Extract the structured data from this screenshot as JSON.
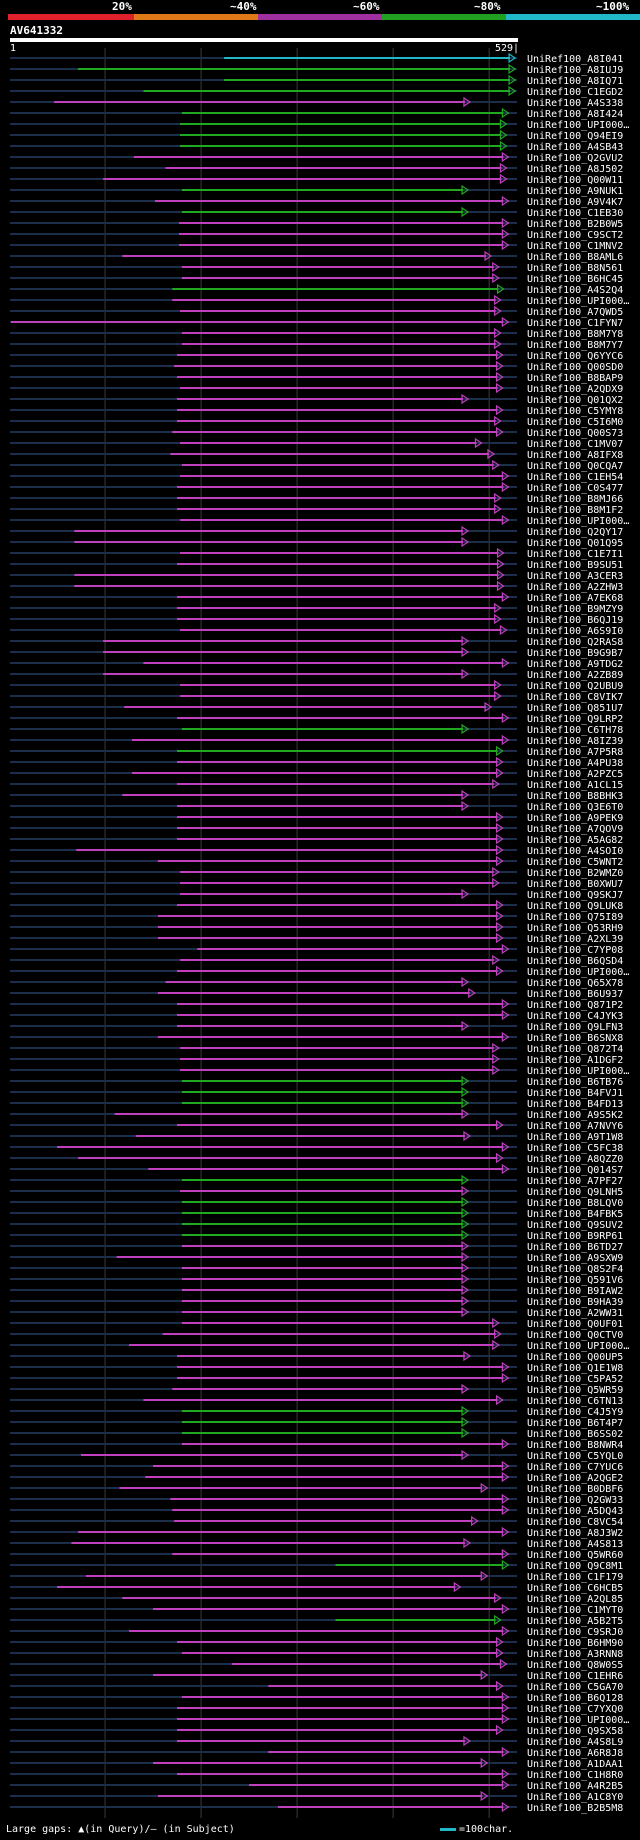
{
  "query": {
    "id": "AV641332",
    "length": 529,
    "start_label": "1",
    "end_label": "529|"
  },
  "scale": {
    "labels": [
      "20%",
      "~40%",
      "~60%",
      "~80%",
      "~100%"
    ],
    "colors": [
      "#e0202a",
      "#e07a18",
      "#a030a0",
      "#20a020",
      "#20b8c8"
    ]
  },
  "legend": {
    "gaps_text": "Large gaps: ▲(in Query)/— (in Subject)",
    "scale_text": "=100char."
  },
  "colors": {
    "cyan": "#22b8c8",
    "green": "#21a821",
    "magenta": "#c040c0"
  },
  "hits": [
    {
      "id": "UniRef100_A8I041",
      "start": 224,
      "end": 527,
      "color": "cyan"
    },
    {
      "id": "UniRef100_A8IUJ9",
      "start": 72,
      "end": 527,
      "color": "green"
    },
    {
      "id": "UniRef100_A8IQ71",
      "start": 224,
      "end": 527,
      "color": "green"
    },
    {
      "id": "UniRef100_C1EGD2",
      "start": 140,
      "end": 527,
      "color": "green"
    },
    {
      "id": "UniRef100_A4S338",
      "start": 47,
      "end": 480,
      "color": "magenta"
    },
    {
      "id": "UniRef100_A8I424",
      "start": 180,
      "end": 520,
      "color": "green"
    },
    {
      "id": "UniRef100_UPI000…",
      "start": 178,
      "end": 518,
      "color": "green"
    },
    {
      "id": "UniRef100_Q94EI9",
      "start": 178,
      "end": 518,
      "color": "green"
    },
    {
      "id": "UniRef100_A4SB43",
      "start": 178,
      "end": 518,
      "color": "green"
    },
    {
      "id": "UniRef100_Q2GVU2",
      "start": 130,
      "end": 520,
      "color": "magenta"
    },
    {
      "id": "UniRef100_A8J502",
      "start": 163,
      "end": 518,
      "color": "magenta"
    },
    {
      "id": "UniRef100_Q00W11",
      "start": 98,
      "end": 518,
      "color": "magenta"
    },
    {
      "id": "UniRef100_A9NUK1",
      "start": 180,
      "end": 478,
      "color": "green"
    },
    {
      "id": "UniRef100_A9V4K7",
      "start": 152,
      "end": 520,
      "color": "magenta"
    },
    {
      "id": "UniRef100_C1EB30",
      "start": 180,
      "end": 478,
      "color": "green"
    },
    {
      "id": "UniRef100_B2B0W5",
      "start": 177,
      "end": 520,
      "color": "magenta"
    },
    {
      "id": "UniRef100_C9SCT2",
      "start": 177,
      "end": 520,
      "color": "magenta"
    },
    {
      "id": "UniRef100_C1MNV2",
      "start": 177,
      "end": 520,
      "color": "magenta"
    },
    {
      "id": "UniRef100_B8AML6",
      "start": 118,
      "end": 502,
      "color": "magenta"
    },
    {
      "id": "UniRef100_B8N561",
      "start": 180,
      "end": 510,
      "color": "magenta"
    },
    {
      "id": "UniRef100_B6HC45",
      "start": 180,
      "end": 510,
      "color": "magenta"
    },
    {
      "id": "UniRef100_A4S2Q4",
      "start": 170,
      "end": 515,
      "color": "green"
    },
    {
      "id": "UniRef100_UPI000…",
      "start": 170,
      "end": 512,
      "color": "magenta"
    },
    {
      "id": "UniRef100_A7QWD5",
      "start": 178,
      "end": 512,
      "color": "magenta"
    },
    {
      "id": "UniRef100_C1FYN7",
      "start": 2,
      "end": 520,
      "color": "magenta"
    },
    {
      "id": "UniRef100_B8M7Y8",
      "start": 180,
      "end": 512,
      "color": "magenta"
    },
    {
      "id": "UniRef100_B8M7Y7",
      "start": 180,
      "end": 512,
      "color": "magenta"
    },
    {
      "id": "UniRef100_Q6YYC6",
      "start": 175,
      "end": 514,
      "color": "magenta"
    },
    {
      "id": "UniRef100_Q00SD0",
      "start": 172,
      "end": 514,
      "color": "magenta"
    },
    {
      "id": "UniRef100_B8BAP9",
      "start": 175,
      "end": 514,
      "color": "magenta"
    },
    {
      "id": "UniRef100_A2QDX9",
      "start": 178,
      "end": 514,
      "color": "magenta"
    },
    {
      "id": "UniRef100_Q01QX2",
      "start": 175,
      "end": 478,
      "color": "magenta"
    },
    {
      "id": "UniRef100_C5YMY8",
      "start": 175,
      "end": 514,
      "color": "magenta"
    },
    {
      "id": "UniRef100_C5I6M0",
      "start": 175,
      "end": 512,
      "color": "magenta"
    },
    {
      "id": "UniRef100_Q00S73",
      "start": 170,
      "end": 514,
      "color": "magenta"
    },
    {
      "id": "UniRef100_C1MV07",
      "start": 178,
      "end": 492,
      "color": "magenta"
    },
    {
      "id": "UniRef100_A8IFX8",
      "start": 168,
      "end": 505,
      "color": "magenta"
    },
    {
      "id": "UniRef100_Q0CQA7",
      "start": 180,
      "end": 510,
      "color": "magenta"
    },
    {
      "id": "UniRef100_C1EH54",
      "start": 178,
      "end": 520,
      "color": "magenta"
    },
    {
      "id": "UniRef100_C0S477",
      "start": 175,
      "end": 520,
      "color": "magenta"
    },
    {
      "id": "UniRef100_B8MJ66",
      "start": 175,
      "end": 512,
      "color": "magenta"
    },
    {
      "id": "UniRef100_B8M1F2",
      "start": 175,
      "end": 512,
      "color": "magenta"
    },
    {
      "id": "UniRef100_UPI000…",
      "start": 178,
      "end": 520,
      "color": "magenta"
    },
    {
      "id": "UniRef100_Q2QY17",
      "start": 68,
      "end": 478,
      "color": "magenta"
    },
    {
      "id": "UniRef100_Q01Q95",
      "start": 68,
      "end": 478,
      "color": "magenta"
    },
    {
      "id": "UniRef100_C1E7I1",
      "start": 178,
      "end": 515,
      "color": "magenta"
    },
    {
      "id": "UniRef100_B9SU51",
      "start": 175,
      "end": 515,
      "color": "magenta"
    },
    {
      "id": "UniRef100_A3CER3",
      "start": 68,
      "end": 515,
      "color": "magenta"
    },
    {
      "id": "UniRef100_A2ZHW3",
      "start": 68,
      "end": 515,
      "color": "magenta"
    },
    {
      "id": "UniRef100_A7EK68",
      "start": 175,
      "end": 520,
      "color": "magenta"
    },
    {
      "id": "UniRef100_B9MZY9",
      "start": 175,
      "end": 512,
      "color": "magenta"
    },
    {
      "id": "UniRef100_B6QJ19",
      "start": 175,
      "end": 512,
      "color": "magenta"
    },
    {
      "id": "UniRef100_A6S9I0",
      "start": 178,
      "end": 518,
      "color": "magenta"
    },
    {
      "id": "UniRef100_Q2RAS8",
      "start": 98,
      "end": 478,
      "color": "magenta"
    },
    {
      "id": "UniRef100_B9G9B7",
      "start": 98,
      "end": 478,
      "color": "magenta"
    },
    {
      "id": "UniRef100_A9TDG2",
      "start": 140,
      "end": 520,
      "color": "magenta"
    },
    {
      "id": "UniRef100_A2ZB89",
      "start": 98,
      "end": 478,
      "color": "magenta"
    },
    {
      "id": "UniRef100_Q2UBU9",
      "start": 178,
      "end": 512,
      "color": "magenta"
    },
    {
      "id": "UniRef100_C8VIK7",
      "start": 178,
      "end": 512,
      "color": "magenta"
    },
    {
      "id": "UniRef100_Q851U7",
      "start": 120,
      "end": 502,
      "color": "magenta"
    },
    {
      "id": "UniRef100_Q9LRP2",
      "start": 175,
      "end": 520,
      "color": "magenta"
    },
    {
      "id": "UniRef100_C6TH78",
      "start": 180,
      "end": 478,
      "color": "green"
    },
    {
      "id": "UniRef100_A8IZ39",
      "start": 128,
      "end": 520,
      "color": "magenta"
    },
    {
      "id": "UniRef100_A7P5R8",
      "start": 175,
      "end": 514,
      "color": "green"
    },
    {
      "id": "UniRef100_A4PU38",
      "start": 175,
      "end": 514,
      "color": "magenta"
    },
    {
      "id": "UniRef100_A2PZC5",
      "start": 128,
      "end": 514,
      "color": "magenta"
    },
    {
      "id": "UniRef100_A1CL15",
      "start": 175,
      "end": 510,
      "color": "magenta"
    },
    {
      "id": "UniRef100_B8BHK3",
      "start": 118,
      "end": 478,
      "color": "magenta"
    },
    {
      "id": "UniRef100_Q3E6T0",
      "start": 175,
      "end": 478,
      "color": "magenta"
    },
    {
      "id": "UniRef100_A9PEK9",
      "start": 175,
      "end": 514,
      "color": "magenta"
    },
    {
      "id": "UniRef100_A7QOV9",
      "start": 175,
      "end": 514,
      "color": "magenta"
    },
    {
      "id": "UniRef100_A5AG82",
      "start": 175,
      "end": 514,
      "color": "magenta"
    },
    {
      "id": "UniRef100_A4SOI0",
      "start": 70,
      "end": 514,
      "color": "magenta"
    },
    {
      "id": "UniRef100_C5WNT2",
      "start": 155,
      "end": 514,
      "color": "magenta"
    },
    {
      "id": "UniRef100_B2WMZ0",
      "start": 178,
      "end": 510,
      "color": "magenta"
    },
    {
      "id": "UniRef100_B0XWU7",
      "start": 178,
      "end": 510,
      "color": "magenta"
    },
    {
      "id": "UniRef100_Q9SKJ7",
      "start": 178,
      "end": 478,
      "color": "magenta"
    },
    {
      "id": "UniRef100_Q9LUK8",
      "start": 175,
      "end": 514,
      "color": "magenta"
    },
    {
      "id": "UniRef100_Q75I89",
      "start": 155,
      "end": 514,
      "color": "magenta"
    },
    {
      "id": "UniRef100_Q53RH9",
      "start": 155,
      "end": 514,
      "color": "magenta"
    },
    {
      "id": "UniRef100_A2XL39",
      "start": 155,
      "end": 514,
      "color": "magenta"
    },
    {
      "id": "UniRef100_C7YP08",
      "start": 196,
      "end": 520,
      "color": "magenta"
    },
    {
      "id": "UniRef100_B6QSD4",
      "start": 178,
      "end": 510,
      "color": "magenta"
    },
    {
      "id": "UniRef100_UPI000…",
      "start": 175,
      "end": 514,
      "color": "magenta"
    },
    {
      "id": "UniRef100_Q65X78",
      "start": 163,
      "end": 478,
      "color": "magenta"
    },
    {
      "id": "UniRef100_B6U937",
      "start": 155,
      "end": 485,
      "color": "magenta"
    },
    {
      "id": "UniRef100_Q871P2",
      "start": 175,
      "end": 520,
      "color": "magenta"
    },
    {
      "id": "UniRef100_C4JYK3",
      "start": 175,
      "end": 520,
      "color": "magenta"
    },
    {
      "id": "UniRef100_Q9LFN3",
      "start": 175,
      "end": 478,
      "color": "magenta"
    },
    {
      "id": "UniRef100_B6SNX8",
      "start": 155,
      "end": 520,
      "color": "magenta"
    },
    {
      "id": "UniRef100_Q872T4",
      "start": 178,
      "end": 510,
      "color": "magenta"
    },
    {
      "id": "UniRef100_A1DGF2",
      "start": 178,
      "end": 510,
      "color": "magenta"
    },
    {
      "id": "UniRef100_UPI000…",
      "start": 178,
      "end": 510,
      "color": "magenta"
    },
    {
      "id": "UniRef100_B6TB76",
      "start": 180,
      "end": 478,
      "color": "green"
    },
    {
      "id": "UniRef100_B4FVJ1",
      "start": 180,
      "end": 478,
      "color": "green"
    },
    {
      "id": "UniRef100_B4FD13",
      "start": 180,
      "end": 478,
      "color": "green"
    },
    {
      "id": "UniRef100_A9S5K2",
      "start": 110,
      "end": 478,
      "color": "magenta"
    },
    {
      "id": "UniRef100_A7NVY6",
      "start": 175,
      "end": 514,
      "color": "magenta"
    },
    {
      "id": "UniRef100_A9T1W8",
      "start": 132,
      "end": 480,
      "color": "magenta"
    },
    {
      "id": "UniRef100_C5FC38",
      "start": 50,
      "end": 520,
      "color": "magenta"
    },
    {
      "id": "UniRef100_A8QZZ0",
      "start": 72,
      "end": 514,
      "color": "magenta"
    },
    {
      "id": "UniRef100_Q014S7",
      "start": 145,
      "end": 520,
      "color": "magenta"
    },
    {
      "id": "UniRef100_A7PF27",
      "start": 180,
      "end": 478,
      "color": "green"
    },
    {
      "id": "UniRef100_Q9LNH5",
      "start": 178,
      "end": 478,
      "color": "magenta"
    },
    {
      "id": "UniRef100_B8LQV0",
      "start": 180,
      "end": 478,
      "color": "green"
    },
    {
      "id": "UniRef100_B4FBK5",
      "start": 180,
      "end": 478,
      "color": "green"
    },
    {
      "id": "UniRef100_Q9SUV2",
      "start": 180,
      "end": 478,
      "color": "green"
    },
    {
      "id": "UniRef100_B9RP61",
      "start": 180,
      "end": 478,
      "color": "green"
    },
    {
      "id": "UniRef100_B6TD27",
      "start": 180,
      "end": 478,
      "color": "magenta"
    },
    {
      "id": "UniRef100_A9SXW9",
      "start": 112,
      "end": 478,
      "color": "magenta"
    },
    {
      "id": "UniRef100_Q8S2F4",
      "start": 180,
      "end": 478,
      "color": "magenta"
    },
    {
      "id": "UniRef100_Q591V6",
      "start": 180,
      "end": 478,
      "color": "magenta"
    },
    {
      "id": "UniRef100_B9IAW2",
      "start": 180,
      "end": 478,
      "color": "magenta"
    },
    {
      "id": "UniRef100_B9HA39",
      "start": 180,
      "end": 478,
      "color": "magenta"
    },
    {
      "id": "UniRef100_A2WW31",
      "start": 180,
      "end": 478,
      "color": "magenta"
    },
    {
      "id": "UniRef100_Q0UF01",
      "start": 180,
      "end": 510,
      "color": "magenta"
    },
    {
      "id": "UniRef100_Q0CTV0",
      "start": 160,
      "end": 512,
      "color": "magenta"
    },
    {
      "id": "UniRef100_UPI000…",
      "start": 125,
      "end": 510,
      "color": "magenta"
    },
    {
      "id": "UniRef100_Q00UP5",
      "start": 175,
      "end": 480,
      "color": "magenta"
    },
    {
      "id": "UniRef100_Q1E1W8",
      "start": 175,
      "end": 520,
      "color": "magenta"
    },
    {
      "id": "UniRef100_C5PA52",
      "start": 175,
      "end": 520,
      "color": "magenta"
    },
    {
      "id": "UniRef100_Q5WR59",
      "start": 170,
      "end": 478,
      "color": "magenta"
    },
    {
      "id": "UniRef100_C6TN13",
      "start": 140,
      "end": 514,
      "color": "magenta"
    },
    {
      "id": "UniRef100_C4J5Y9",
      "start": 180,
      "end": 478,
      "color": "green"
    },
    {
      "id": "UniRef100_B6T4P7",
      "start": 180,
      "end": 478,
      "color": "green"
    },
    {
      "id": "UniRef100_B6SS02",
      "start": 180,
      "end": 478,
      "color": "green"
    },
    {
      "id": "UniRef100_B8NWR4",
      "start": 180,
      "end": 520,
      "color": "magenta"
    },
    {
      "id": "UniRef100_C5YQL0",
      "start": 75,
      "end": 478,
      "color": "magenta"
    },
    {
      "id": "UniRef100_C7YUC6",
      "start": 150,
      "end": 520,
      "color": "magenta"
    },
    {
      "id": "UniRef100_A2QGE2",
      "start": 142,
      "end": 520,
      "color": "magenta"
    },
    {
      "id": "UniRef100_B0DBF6",
      "start": 115,
      "end": 498,
      "color": "magenta"
    },
    {
      "id": "UniRef100_Q2GW33",
      "start": 168,
      "end": 520,
      "color": "magenta"
    },
    {
      "id": "UniRef100_A5DQ43",
      "start": 170,
      "end": 520,
      "color": "magenta"
    },
    {
      "id": "UniRef100_C8VC54",
      "start": 172,
      "end": 488,
      "color": "magenta"
    },
    {
      "id": "UniRef100_A8J3W2",
      "start": 72,
      "end": 520,
      "color": "magenta"
    },
    {
      "id": "UniRef100_A4S813",
      "start": 65,
      "end": 480,
      "color": "magenta"
    },
    {
      "id": "UniRef100_Q5WR60",
      "start": 170,
      "end": 520,
      "color": "magenta"
    },
    {
      "id": "UniRef100_Q9C8M1",
      "start": 340,
      "end": 520,
      "color": "green"
    },
    {
      "id": "UniRef100_C1F179",
      "start": 80,
      "end": 498,
      "color": "magenta"
    },
    {
      "id": "UniRef100_C6HCB5",
      "start": 50,
      "end": 470,
      "color": "magenta"
    },
    {
      "id": "UniRef100_A2QL85",
      "start": 118,
      "end": 512,
      "color": "magenta"
    },
    {
      "id": "UniRef100_C1MYT0",
      "start": 150,
      "end": 520,
      "color": "magenta"
    },
    {
      "id": "UniRef100_A5B2T5",
      "start": 340,
      "end": 512,
      "color": "green"
    },
    {
      "id": "UniRef100_C9SRJ0",
      "start": 125,
      "end": 520,
      "color": "magenta"
    },
    {
      "id": "UniRef100_B6HM90",
      "start": 175,
      "end": 514,
      "color": "magenta"
    },
    {
      "id": "UniRef100_A3RNN8",
      "start": 180,
      "end": 514,
      "color": "magenta"
    },
    {
      "id": "UniRef100_Q8W0S5",
      "start": 232,
      "end": 518,
      "color": "magenta"
    },
    {
      "id": "UniRef100_C1EHR6",
      "start": 150,
      "end": 498,
      "color": "magenta"
    },
    {
      "id": "UniRef100_C5GA70",
      "start": 270,
      "end": 514,
      "color": "magenta"
    },
    {
      "id": "UniRef100_B6Q128",
      "start": 180,
      "end": 520,
      "color": "magenta"
    },
    {
      "id": "UniRef100_C7YXQ0",
      "start": 175,
      "end": 520,
      "color": "magenta"
    },
    {
      "id": "UniRef100_UPI000…",
      "start": 175,
      "end": 520,
      "color": "magenta"
    },
    {
      "id": "UniRef100_Q9SX58",
      "start": 175,
      "end": 514,
      "color": "magenta"
    },
    {
      "id": "UniRef100_A4S8L9",
      "start": 175,
      "end": 480,
      "color": "magenta"
    },
    {
      "id": "UniRef100_A6R8J8",
      "start": 270,
      "end": 520,
      "color": "magenta"
    },
    {
      "id": "UniRef100_A1DAA1",
      "start": 150,
      "end": 498,
      "color": "magenta"
    },
    {
      "id": "UniRef100_C1H8R0",
      "start": 175,
      "end": 520,
      "color": "magenta"
    },
    {
      "id": "UniRef100_A4R2B5",
      "start": 250,
      "end": 520,
      "color": "magenta"
    },
    {
      "id": "UniRef100_A1C8Y0",
      "start": 155,
      "end": 498,
      "color": "magenta"
    },
    {
      "id": "UniRef100_B2B5M8",
      "start": 280,
      "end": 520,
      "color": "magenta"
    }
  ]
}
